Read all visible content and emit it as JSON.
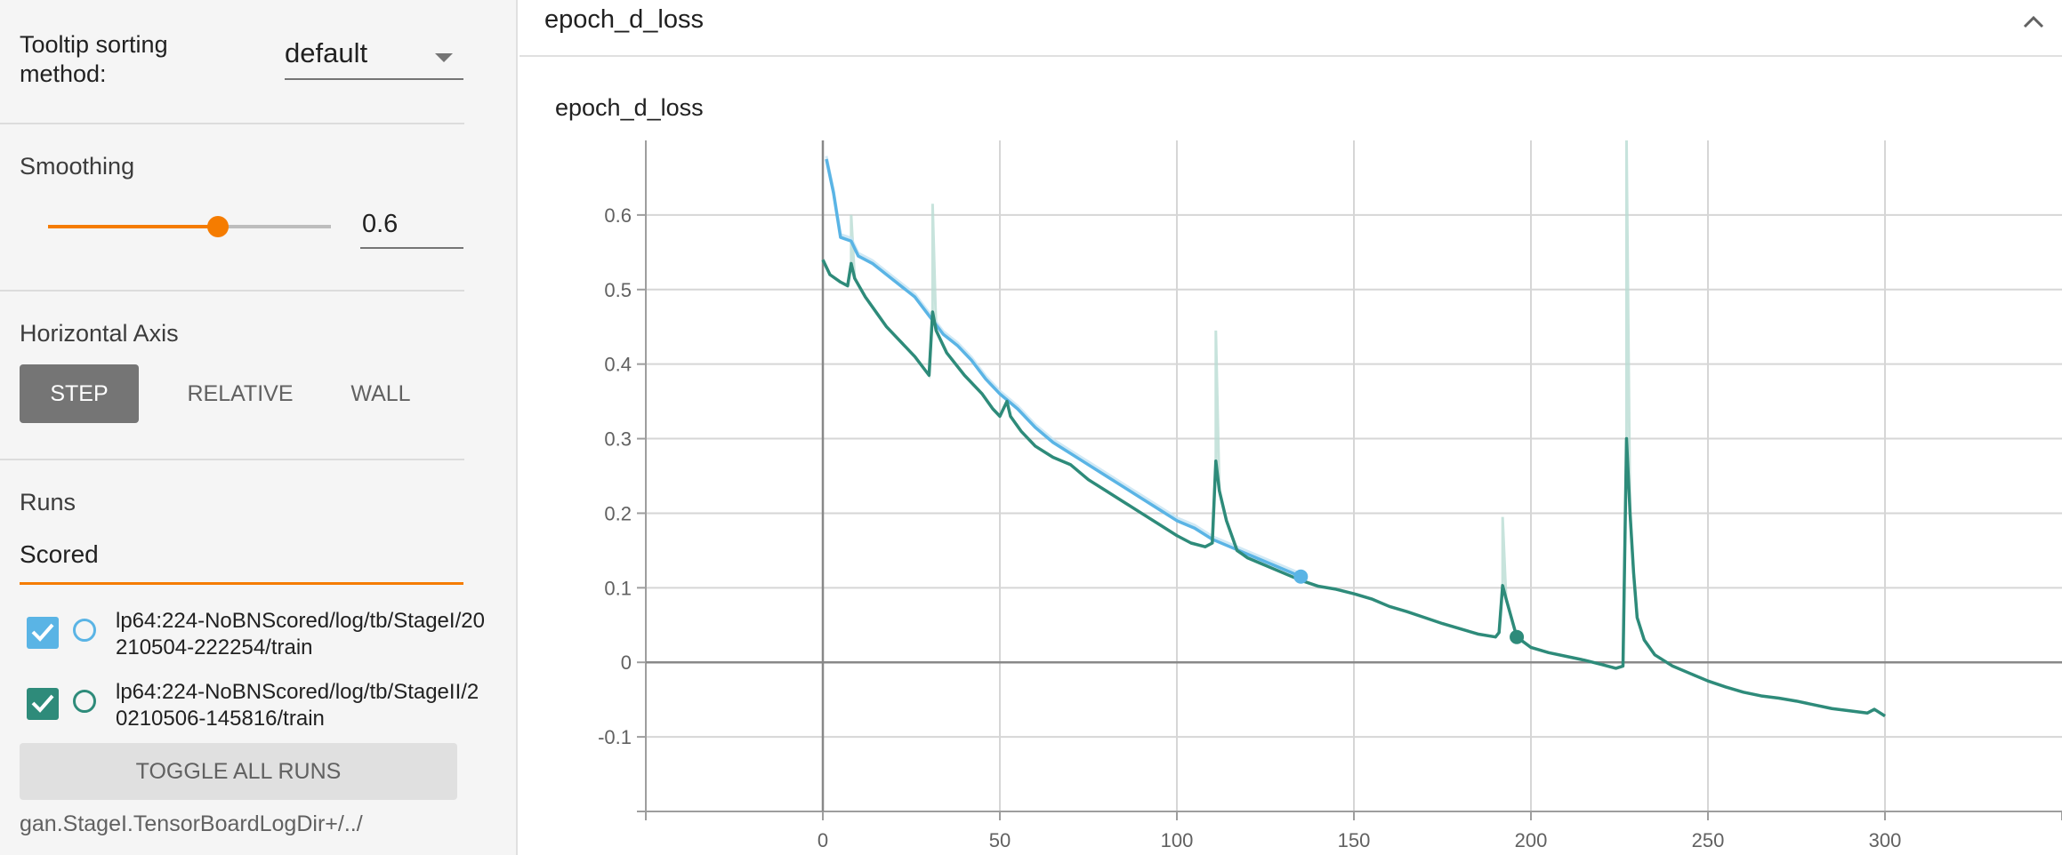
{
  "sidebar": {
    "tooltip_sorting": {
      "label": "Tooltip sorting method:",
      "value": "default"
    },
    "smoothing": {
      "title": "Smoothing",
      "value": "0.6",
      "fraction": 0.6
    },
    "horizontal_axis": {
      "title": "Horizontal Axis",
      "options": [
        "STEP",
        "RELATIVE",
        "WALL"
      ],
      "selected": "STEP"
    },
    "runs": {
      "title": "Runs",
      "filter_value": "Scored",
      "items": [
        {
          "label": "lp64:224-NoBNScored/log/tb/StageI/20210504-222254/train",
          "checked": true,
          "color": "#5ab4e5"
        },
        {
          "label": "lp64:224-NoBNScored/log/tb/StageII/20210506-145816/train",
          "checked": true,
          "color": "#2e8b7a"
        }
      ],
      "toggle_all_label": "TOGGLE ALL RUNS",
      "logdir": "gan.StageI.TensorBoardLogDir+/../"
    }
  },
  "card": {
    "title": "epoch_d_loss",
    "chart_title": "epoch_d_loss",
    "collapse_icon": "chevron-up-icon"
  },
  "chart_data": {
    "type": "line",
    "title": "epoch_d_loss",
    "xlabel": "",
    "ylabel": "",
    "xlim": [
      -50,
      350
    ],
    "ylim": [
      -0.2,
      0.7
    ],
    "x_ticks": [
      0,
      50,
      100,
      150,
      200,
      250,
      300
    ],
    "y_ticks": [
      -0.1,
      0,
      0.1,
      0.2,
      0.3,
      0.4,
      0.5,
      0.6
    ],
    "grid": true,
    "series": [
      {
        "color": "#5ab4e5",
        "smoothed": [
          [
            1,
            0.675
          ],
          [
            3,
            0.63
          ],
          [
            5,
            0.57
          ],
          [
            8,
            0.565
          ],
          [
            10,
            0.545
          ],
          [
            14,
            0.535
          ],
          [
            18,
            0.52
          ],
          [
            22,
            0.505
          ],
          [
            26,
            0.49
          ],
          [
            30,
            0.465
          ],
          [
            34,
            0.44
          ],
          [
            38,
            0.425
          ],
          [
            42,
            0.405
          ],
          [
            46,
            0.38
          ],
          [
            50,
            0.36
          ],
          [
            55,
            0.34
          ],
          [
            60,
            0.315
          ],
          [
            65,
            0.295
          ],
          [
            70,
            0.28
          ],
          [
            75,
            0.265
          ],
          [
            80,
            0.25
          ],
          [
            85,
            0.235
          ],
          [
            90,
            0.22
          ],
          [
            95,
            0.205
          ],
          [
            100,
            0.19
          ],
          [
            105,
            0.18
          ],
          [
            110,
            0.165
          ],
          [
            115,
            0.155
          ],
          [
            120,
            0.145
          ],
          [
            125,
            0.135
          ],
          [
            130,
            0.125
          ],
          [
            135,
            0.115
          ]
        ]
      },
      {
        "color": "#2e8b7a",
        "smoothed": [
          [
            0,
            0.54
          ],
          [
            2,
            0.52
          ],
          [
            5,
            0.51
          ],
          [
            7,
            0.505
          ],
          [
            8,
            0.535
          ],
          [
            9,
            0.515
          ],
          [
            12,
            0.49
          ],
          [
            15,
            0.47
          ],
          [
            18,
            0.45
          ],
          [
            22,
            0.43
          ],
          [
            26,
            0.41
          ],
          [
            30,
            0.385
          ],
          [
            31,
            0.47
          ],
          [
            32,
            0.445
          ],
          [
            35,
            0.415
          ],
          [
            40,
            0.385
          ],
          [
            45,
            0.36
          ],
          [
            48,
            0.34
          ],
          [
            50,
            0.33
          ],
          [
            52,
            0.35
          ],
          [
            53,
            0.33
          ],
          [
            56,
            0.31
          ],
          [
            60,
            0.29
          ],
          [
            65,
            0.275
          ],
          [
            70,
            0.265
          ],
          [
            75,
            0.245
          ],
          [
            80,
            0.23
          ],
          [
            85,
            0.215
          ],
          [
            90,
            0.2
          ],
          [
            95,
            0.185
          ],
          [
            100,
            0.17
          ],
          [
            104,
            0.16
          ],
          [
            108,
            0.155
          ],
          [
            110,
            0.16
          ],
          [
            111,
            0.27
          ],
          [
            112,
            0.23
          ],
          [
            114,
            0.19
          ],
          [
            117,
            0.15
          ],
          [
            120,
            0.14
          ],
          [
            125,
            0.13
          ],
          [
            130,
            0.12
          ],
          [
            135,
            0.11
          ],
          [
            140,
            0.102
          ],
          [
            145,
            0.098
          ],
          [
            150,
            0.092
          ],
          [
            155,
            0.085
          ],
          [
            160,
            0.075
          ],
          [
            165,
            0.068
          ],
          [
            170,
            0.06
          ],
          [
            175,
            0.052
          ],
          [
            180,
            0.045
          ],
          [
            185,
            0.038
          ],
          [
            190,
            0.034
          ],
          [
            191,
            0.04
          ],
          [
            192,
            0.103
          ],
          [
            193,
            0.085
          ],
          [
            196,
            0.034
          ],
          [
            200,
            0.02
          ],
          [
            205,
            0.013
          ],
          [
            210,
            0.008
          ],
          [
            215,
            0.003
          ],
          [
            220,
            -0.003
          ],
          [
            224,
            -0.008
          ],
          [
            226,
            -0.005
          ],
          [
            227,
            0.3
          ],
          [
            228,
            0.2
          ],
          [
            229,
            0.12
          ],
          [
            230,
            0.06
          ],
          [
            232,
            0.03
          ],
          [
            235,
            0.01
          ],
          [
            240,
            -0.005
          ],
          [
            245,
            -0.015
          ],
          [
            250,
            -0.025
          ],
          [
            255,
            -0.033
          ],
          [
            260,
            -0.04
          ],
          [
            265,
            -0.045
          ],
          [
            270,
            -0.048
          ],
          [
            275,
            -0.052
          ],
          [
            280,
            -0.057
          ],
          [
            285,
            -0.062
          ],
          [
            290,
            -0.065
          ],
          [
            295,
            -0.068
          ],
          [
            297,
            -0.063
          ],
          [
            300,
            -0.072
          ]
        ]
      }
    ],
    "raw_spikes": [
      [
        8,
        0.6
      ],
      [
        31,
        0.615
      ],
      [
        111,
        0.445
      ],
      [
        192,
        0.195
      ],
      [
        227,
        0.7
      ]
    ],
    "markers": [
      {
        "series": 0,
        "x": 135,
        "y": 0.115
      },
      {
        "series": 1,
        "x": 196,
        "y": 0.034
      }
    ]
  }
}
